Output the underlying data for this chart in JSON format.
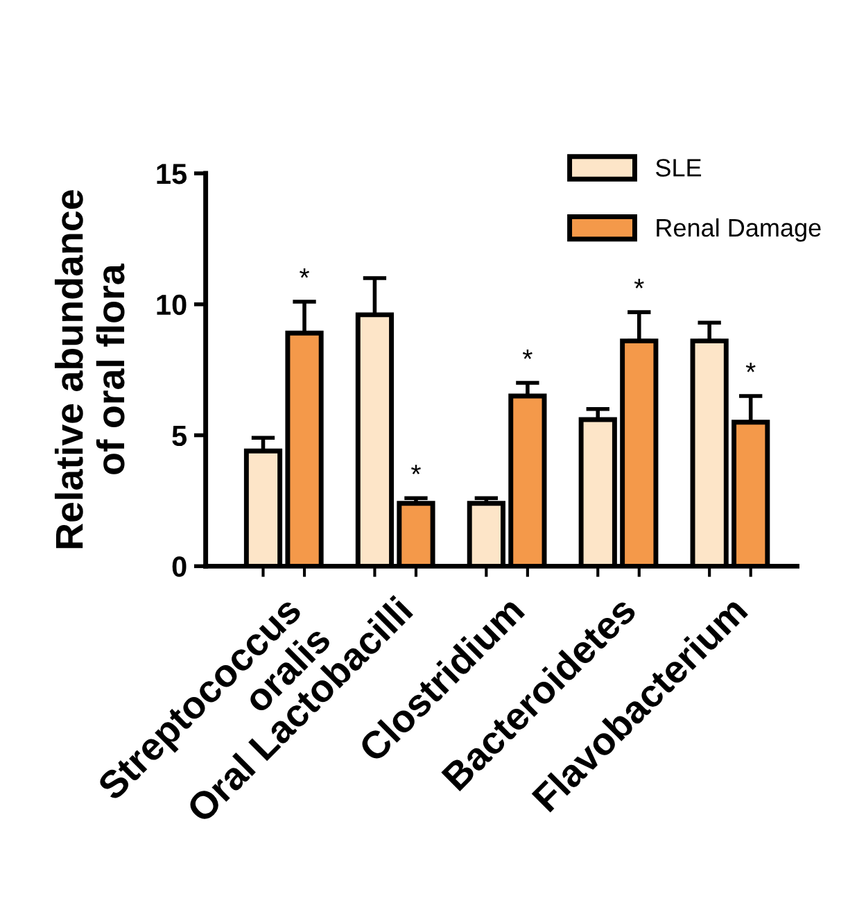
{
  "chart_data": {
    "type": "bar",
    "ylabel": "Relative abundance\nof oral flora",
    "categories": [
      "Streptococcus\noralis",
      "Oral Lactobacilli",
      "Clostridium",
      "Bacteroidetes",
      "Flavobacterium"
    ],
    "series": [
      {
        "name": "SLE",
        "color": "#fde5c8",
        "values": [
          4.4,
          9.6,
          2.4,
          5.6,
          8.6
        ],
        "errors": [
          [
            4.4,
            4.9
          ],
          [
            9.6,
            11.0
          ],
          [
            2.4,
            2.6
          ],
          [
            5.6,
            6.0
          ],
          [
            8.6,
            9.3
          ]
        ]
      },
      {
        "name": "Renal Damage",
        "color": "#f4994a",
        "values": [
          8.9,
          2.4,
          6.5,
          8.6,
          5.5
        ],
        "errors": [
          [
            8.9,
            10.1
          ],
          [
            2.4,
            2.6
          ],
          [
            6.5,
            7.0
          ],
          [
            8.6,
            9.7
          ],
          [
            5.5,
            6.5
          ]
        ]
      }
    ],
    "ylim": [
      0,
      15
    ],
    "yticks": [
      0,
      5,
      10,
      15
    ],
    "grid": false,
    "legend": "top right",
    "annotations": [
      "*",
      "*",
      "*",
      "*",
      "*"
    ]
  }
}
